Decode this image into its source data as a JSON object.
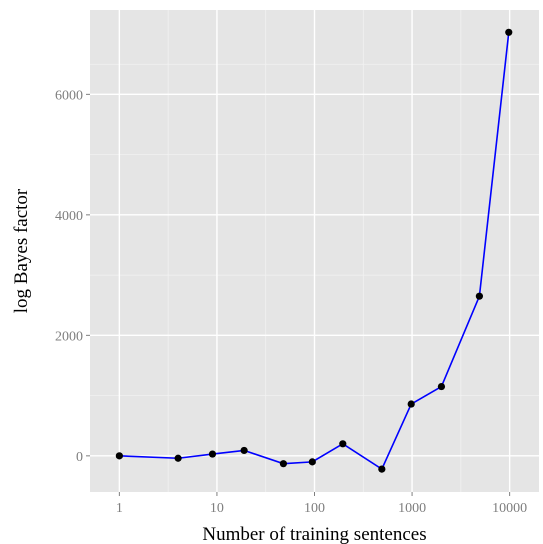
{
  "chart_data": {
    "type": "line",
    "xlabel": "Number of training sentences",
    "ylabel": "log Bayes factor",
    "x_scale": "log10",
    "x_ticks": [
      1,
      10,
      100,
      1000,
      10000
    ],
    "x_tick_labels": [
      "1",
      "10",
      "100",
      "1000",
      "10000"
    ],
    "y_ticks": [
      0,
      2000,
      4000,
      6000
    ],
    "y_tick_labels": [
      "0",
      "2000",
      "4000",
      "6000"
    ],
    "xlim": [
      0.5,
      20000
    ],
    "ylim": [
      -600,
      7400
    ],
    "grid": true,
    "series": [
      {
        "color": "#0000ff",
        "marker_color": "#000000",
        "points": [
          {
            "x": 1,
            "y": 0
          },
          {
            "x": 4,
            "y": -40
          },
          {
            "x": 9,
            "y": 30
          },
          {
            "x": 19,
            "y": 90
          },
          {
            "x": 48,
            "y": -130
          },
          {
            "x": 95,
            "y": -100
          },
          {
            "x": 195,
            "y": 200
          },
          {
            "x": 490,
            "y": -220
          },
          {
            "x": 980,
            "y": 860
          },
          {
            "x": 2000,
            "y": 1150
          },
          {
            "x": 4900,
            "y": 2650
          },
          {
            "x": 9800,
            "y": 7030
          }
        ]
      }
    ],
    "panel_background": "#e5e5e5",
    "grid_color": "#ffffff"
  }
}
